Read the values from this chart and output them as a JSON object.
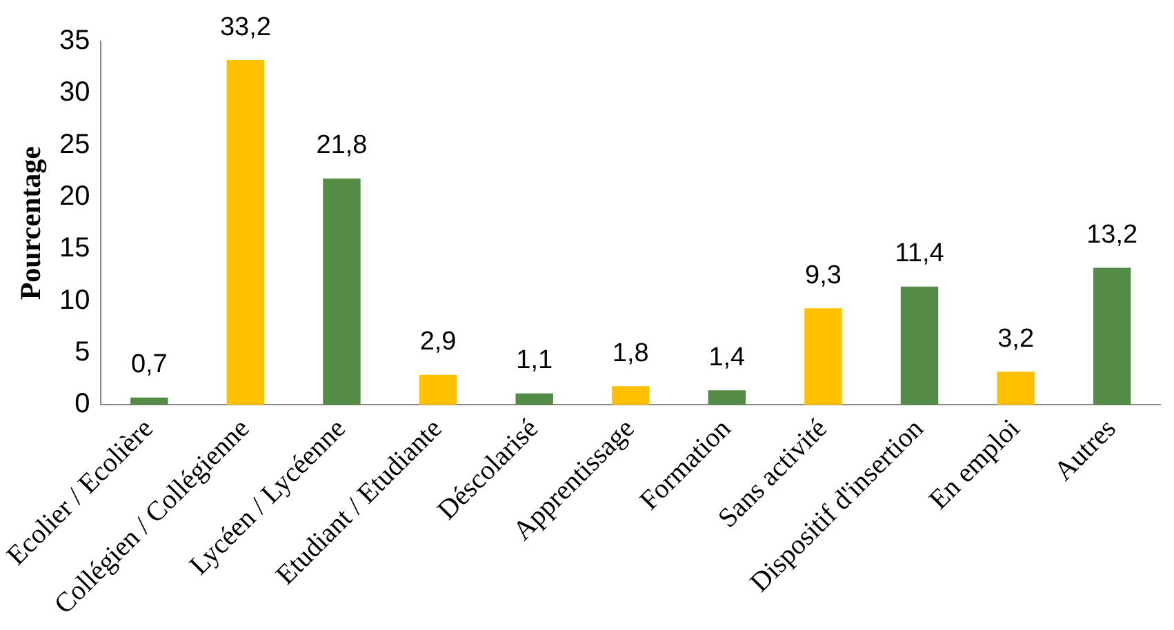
{
  "chart_data": {
    "type": "bar",
    "ylabel": "Pourcentage",
    "categories": [
      "Ecolier / Ecolière",
      "Collégien / Collégienne",
      "Lycéen / Lycéenne",
      "Etudiant / Etudiante",
      "Déscolarisé",
      "Apprentissage",
      "Formation",
      "Sans activité",
      "Dispositif d'insertion",
      "En emploi",
      "Autres"
    ],
    "values": [
      0.7,
      33.2,
      21.8,
      2.9,
      1.1,
      1.8,
      1.4,
      9.3,
      11.4,
      3.2,
      13.2
    ],
    "colors": [
      "#548b46",
      "#ffc000",
      "#548b46",
      "#ffc000",
      "#548b46",
      "#ffc000",
      "#548b46",
      "#ffc000",
      "#548b46",
      "#ffc000",
      "#548b46"
    ],
    "value_labels": [
      "0,7",
      "33,2",
      "21,8",
      "2,9",
      "1,1",
      "1,8",
      "1,4",
      "9,3",
      "11,4",
      "3,2",
      "13,2"
    ],
    "ylim": [
      0,
      35
    ],
    "yticks": [
      0,
      5,
      10,
      15,
      20,
      25,
      30,
      35
    ],
    "grid": false,
    "legend": false
  }
}
